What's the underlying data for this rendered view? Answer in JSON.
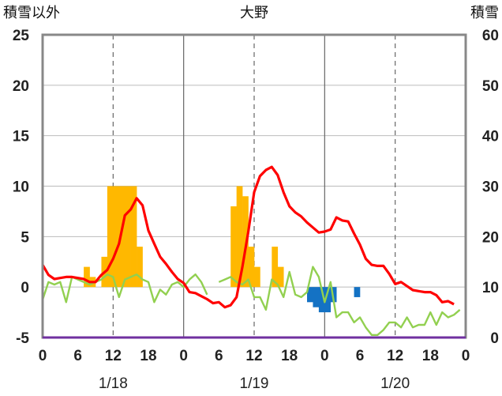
{
  "chart_data": {
    "type": "bar+line",
    "title": "大野",
    "ylabel_left": "積雪以外",
    "ylabel_right": "積雪",
    "left_axis": {
      "min": -5,
      "max": 25,
      "ticks": [
        25,
        20,
        15,
        10,
        5,
        0,
        -5
      ]
    },
    "right_axis": {
      "min": 0,
      "max": 60,
      "ticks": [
        60,
        50,
        40,
        30,
        20,
        10,
        0
      ]
    },
    "x_axis": {
      "unit": "hour",
      "min": 0,
      "max": 72,
      "hour_ticks": [
        {
          "h": 0,
          "label": "0"
        },
        {
          "h": 6,
          "label": "6"
        },
        {
          "h": 12,
          "label": "12"
        },
        {
          "h": 18,
          "label": "18"
        },
        {
          "h": 24,
          "label": "0"
        },
        {
          "h": 30,
          "label": "6"
        },
        {
          "h": 36,
          "label": "12"
        },
        {
          "h": 42,
          "label": "18"
        },
        {
          "h": 48,
          "label": "0"
        },
        {
          "h": 54,
          "label": "6"
        },
        {
          "h": 60,
          "label": "12"
        },
        {
          "h": 66,
          "label": "18"
        },
        {
          "h": 72,
          "label": "0"
        }
      ],
      "dates": [
        {
          "h": 12,
          "label": "1/18"
        },
        {
          "h": 36,
          "label": "1/19"
        },
        {
          "h": 60,
          "label": "1/20"
        }
      ],
      "day_lines": [
        24,
        48
      ],
      "dashed_lines": [
        12,
        36,
        60
      ]
    },
    "precip_bars": [
      {
        "h": 8,
        "v": 2
      },
      {
        "h": 9,
        "v": 1
      },
      {
        "h": 11,
        "v": 3
      },
      {
        "h": 12,
        "v": 10
      },
      {
        "h": 13,
        "v": 10
      },
      {
        "h": 14,
        "v": 10
      },
      {
        "h": 15,
        "v": 10
      },
      {
        "h": 16,
        "v": 10
      },
      {
        "h": 17,
        "v": 4
      },
      {
        "h": 33,
        "v": 8
      },
      {
        "h": 34,
        "v": 10
      },
      {
        "h": 35,
        "v": 9
      },
      {
        "h": 36,
        "v": 4
      },
      {
        "h": 37,
        "v": 2
      },
      {
        "h": 40,
        "v": 4
      },
      {
        "h": 41,
        "v": 2
      }
    ],
    "snow_decrease_bars": [
      {
        "h": 46,
        "v": -1.5
      },
      {
        "h": 47,
        "v": -2
      },
      {
        "h": 48,
        "v": -2.5
      },
      {
        "h": 49,
        "v": -2.5
      },
      {
        "h": 50,
        "v": -1.5
      },
      {
        "h": 54,
        "v": -1
      }
    ],
    "temperature": [
      [
        0,
        2.2
      ],
      [
        1,
        1.2
      ],
      [
        2,
        0.8
      ],
      [
        3,
        0.9
      ],
      [
        4,
        1.0
      ],
      [
        5,
        1.0
      ],
      [
        6,
        0.9
      ],
      [
        7,
        0.8
      ],
      [
        8,
        0.5
      ],
      [
        9,
        0.5
      ],
      [
        10,
        1.2
      ],
      [
        11,
        1.7
      ],
      [
        12,
        2.8
      ],
      [
        13,
        4.3
      ],
      [
        14,
        7.1
      ],
      [
        15,
        7.7
      ],
      [
        16,
        8.8
      ],
      [
        17,
        8.1
      ],
      [
        18,
        5.6
      ],
      [
        19,
        4.3
      ],
      [
        20,
        3.0
      ],
      [
        21,
        2.3
      ],
      [
        22,
        1.5
      ],
      [
        23,
        0.8
      ],
      [
        24,
        0.4
      ],
      [
        25,
        -0.5
      ],
      [
        26,
        -0.6
      ],
      [
        27,
        -0.9
      ],
      [
        28,
        -1.2
      ],
      [
        29,
        -1.6
      ],
      [
        30,
        -1.5
      ],
      [
        31,
        -2.0
      ],
      [
        32,
        -1.8
      ],
      [
        33,
        -1.0
      ],
      [
        34,
        2.0
      ],
      [
        35,
        5.5
      ],
      [
        36,
        9.4
      ],
      [
        37,
        11.0
      ],
      [
        38,
        11.6
      ],
      [
        39,
        11.9
      ],
      [
        40,
        11.1
      ],
      [
        41,
        9.4
      ],
      [
        42,
        8.0
      ],
      [
        43,
        7.4
      ],
      [
        44,
        7.0
      ],
      [
        45,
        6.4
      ],
      [
        46,
        5.9
      ],
      [
        47,
        5.4
      ],
      [
        48,
        5.5
      ],
      [
        49,
        5.7
      ],
      [
        50,
        6.9
      ],
      [
        51,
        6.6
      ],
      [
        52,
        6.5
      ],
      [
        53,
        5.3
      ],
      [
        54,
        4.2
      ],
      [
        55,
        2.8
      ],
      [
        56,
        2.2
      ],
      [
        57,
        2.1
      ],
      [
        58,
        2.1
      ],
      [
        59,
        1.3
      ],
      [
        60,
        0.3
      ],
      [
        61,
        0.5
      ],
      [
        62,
        0.1
      ],
      [
        63,
        -0.3
      ],
      [
        64,
        -0.4
      ],
      [
        65,
        -0.5
      ],
      [
        66,
        -0.5
      ],
      [
        67,
        -0.8
      ],
      [
        68,
        -1.5
      ],
      [
        69,
        -1.4
      ],
      [
        70,
        -1.7
      ]
    ],
    "snow_depth": [
      [
        0,
        7.5
      ],
      [
        1,
        11
      ],
      [
        2,
        10.5
      ],
      [
        3,
        11
      ],
      [
        4,
        7
      ],
      [
        5,
        12
      ],
      [
        6,
        11.5
      ],
      [
        7,
        11
      ],
      [
        8,
        10.5
      ],
      [
        9,
        11
      ],
      [
        10,
        11.5
      ],
      [
        11,
        12.5
      ],
      [
        12,
        12
      ],
      [
        13,
        8
      ],
      [
        14,
        11.5
      ],
      [
        15,
        12
      ],
      [
        16,
        12.5
      ],
      [
        17,
        11.5
      ],
      [
        18,
        11
      ],
      [
        19,
        7
      ],
      [
        20,
        9.5
      ],
      [
        21,
        8.5
      ],
      [
        22,
        10.5
      ],
      [
        23,
        11
      ],
      [
        24,
        10
      ],
      [
        25,
        11.5
      ],
      [
        26,
        12.5
      ],
      [
        27,
        11
      ],
      [
        28,
        8.5
      ],
      [
        30,
        11
      ],
      [
        31,
        11.5
      ],
      [
        32,
        12
      ],
      [
        33,
        11
      ],
      [
        34,
        10.5
      ],
      [
        35,
        11.5
      ],
      [
        36,
        8
      ],
      [
        37,
        8
      ],
      [
        38,
        5.5
      ],
      [
        39,
        11.5
      ],
      [
        40,
        10.5
      ],
      [
        41,
        8
      ],
      [
        42,
        13
      ],
      [
        43,
        8.5
      ],
      [
        44,
        8
      ],
      [
        45,
        9
      ],
      [
        46,
        14
      ],
      [
        47,
        12
      ],
      [
        48,
        7
      ],
      [
        49,
        11
      ],
      [
        50,
        4
      ],
      [
        51,
        5
      ],
      [
        52,
        5
      ],
      [
        53,
        3
      ],
      [
        54,
        4
      ],
      [
        55,
        2
      ],
      [
        56,
        0.5
      ],
      [
        57,
        0.5
      ],
      [
        58,
        1.5
      ],
      [
        59,
        3
      ],
      [
        60,
        3
      ],
      [
        61,
        2
      ],
      [
        62,
        4
      ],
      [
        63,
        2
      ],
      [
        64,
        2.5
      ],
      [
        65,
        2.5
      ],
      [
        66,
        5
      ],
      [
        67,
        2.5
      ],
      [
        68,
        5
      ],
      [
        69,
        4
      ],
      [
        70,
        4.5
      ],
      [
        71,
        5.5
      ]
    ],
    "colors": {
      "precip": "#FFB800",
      "snow_decrease": "#1472C4",
      "temperature": "#FF0000",
      "snow_depth": "#92D050",
      "baseline": "#7030A0",
      "frame": "#888888"
    }
  }
}
